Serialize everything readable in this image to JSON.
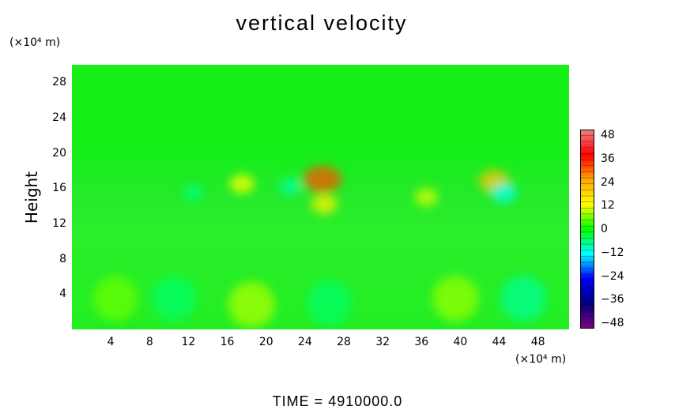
{
  "chart_data": {
    "type": "heatmap",
    "title": "vertical velocity",
    "ylabel": "Height",
    "y_unit": "(×10⁴ m)",
    "x_unit": "(×10⁴ m)",
    "x_ticks": [
      "4",
      "8",
      "12",
      "16",
      "20",
      "24",
      "28",
      "32",
      "36",
      "40",
      "44",
      "48"
    ],
    "x_tick_values": [
      4,
      8,
      12,
      16,
      20,
      24,
      28,
      32,
      36,
      40,
      44,
      48
    ],
    "xlim": [
      0,
      51.2
    ],
    "y_ticks": [
      "4",
      "8",
      "12",
      "16",
      "20",
      "24",
      "28"
    ],
    "y_tick_values": [
      4,
      8,
      12,
      16,
      20,
      24,
      28
    ],
    "ylim": [
      0,
      30
    ],
    "colorbar": {
      "labels": [
        "48",
        "36",
        "24",
        "12",
        "0",
        "−12",
        "−24",
        "−36",
        "−48"
      ],
      "values": [
        48,
        36,
        24,
        12,
        0,
        -12,
        -24,
        -36,
        -48
      ],
      "colors": [
        "#f08080",
        "#ff0000",
        "#ffa500",
        "#ffff00",
        "#00ff00",
        "#00ffff",
        "#0000ff",
        "#000080",
        "#800080"
      ]
    },
    "features": [
      {
        "x": 25.8,
        "y": 17.0,
        "value": 30
      },
      {
        "x": 43.5,
        "y": 16.8,
        "value": 20
      },
      {
        "x": 17.5,
        "y": 16.5,
        "value": 12
      },
      {
        "x": 26.0,
        "y": 14.2,
        "value": 14
      },
      {
        "x": 36.5,
        "y": 15.0,
        "value": 10
      },
      {
        "x": 22.5,
        "y": 16.2,
        "value": -8
      },
      {
        "x": 44.5,
        "y": 15.5,
        "value": -12
      },
      {
        "x": 12.5,
        "y": 15.5,
        "value": -6
      },
      {
        "x": 18.5,
        "y": 2.8,
        "value": 8
      },
      {
        "x": 39.5,
        "y": 3.5,
        "value": 7
      },
      {
        "x": 4.5,
        "y": 3.5,
        "value": 5
      },
      {
        "x": 46.5,
        "y": 3.5,
        "value": -7
      },
      {
        "x": 10.5,
        "y": 3.5,
        "value": -5
      },
      {
        "x": 26.5,
        "y": 3.0,
        "value": -5
      }
    ]
  },
  "footer": {
    "time_label": "TIME  =  4910000.0"
  }
}
